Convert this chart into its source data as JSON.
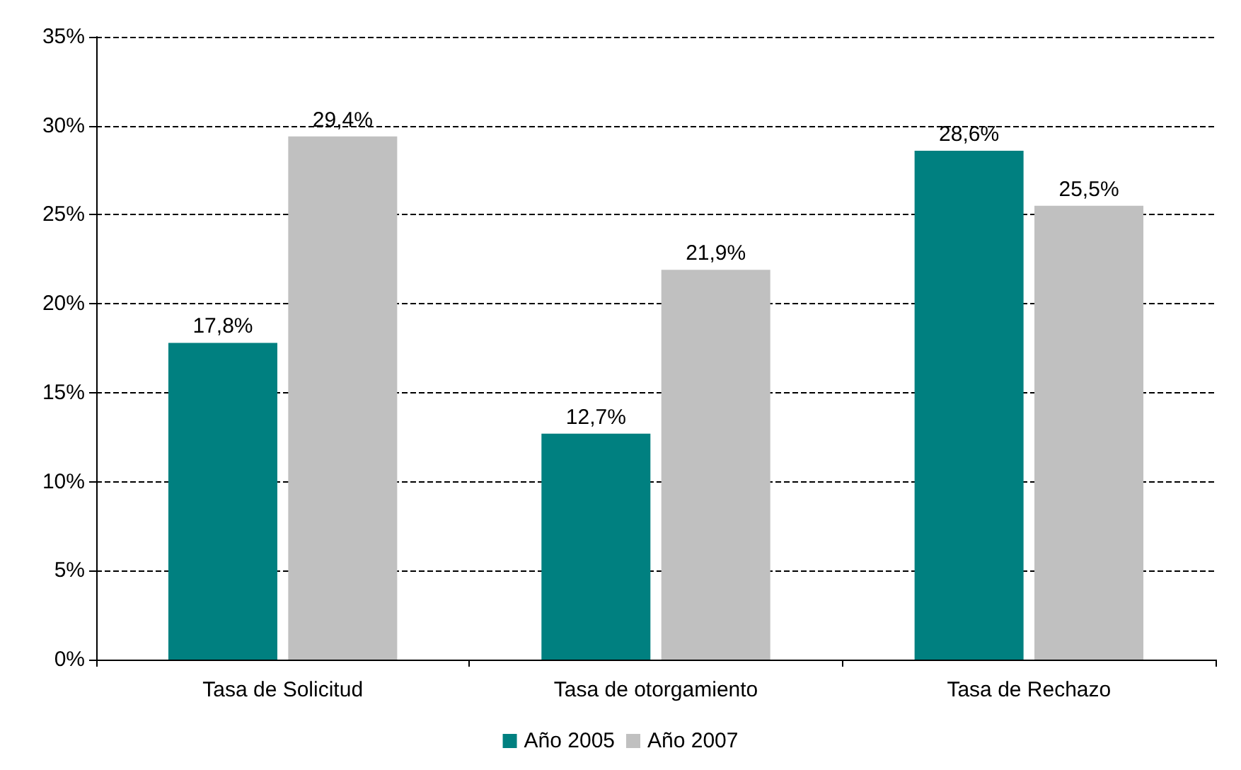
{
  "chart_data": {
    "type": "bar",
    "categories": [
      "Tasa de Solicitud",
      "Tasa de otorgamiento",
      "Tasa de Rechazo"
    ],
    "series": [
      {
        "name": "Año 2005",
        "color": "#008080",
        "values": [
          17.8,
          12.7,
          28.6
        ],
        "value_labels": [
          "17,8%",
          "12,7%",
          "28,6%"
        ]
      },
      {
        "name": "Año 2007",
        "color": "#c0c0c0",
        "values": [
          29.4,
          21.9,
          25.5
        ],
        "value_labels": [
          "29,4%",
          "21,9%",
          "25,5%"
        ]
      }
    ],
    "ylim": [
      0,
      35
    ],
    "yticks": [
      {
        "value": 0,
        "label": "0%"
      },
      {
        "value": 5,
        "label": "5%"
      },
      {
        "value": 10,
        "label": "10%"
      },
      {
        "value": 15,
        "label": "15%"
      },
      {
        "value": 20,
        "label": "20%"
      },
      {
        "value": 25,
        "label": "25%"
      },
      {
        "value": 30,
        "label": "30%"
      },
      {
        "value": 35,
        "label": "35%"
      }
    ],
    "grid": "y",
    "line_style": "dashed",
    "legend": "bottom"
  }
}
